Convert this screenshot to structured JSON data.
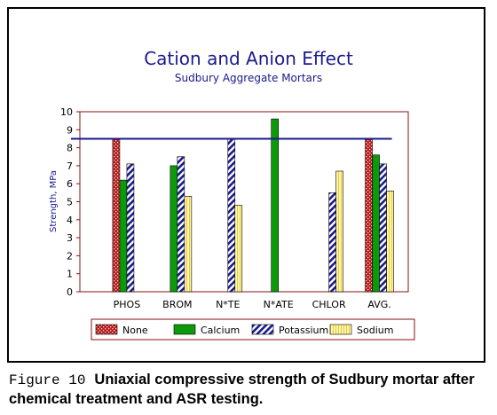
{
  "chart_data": {
    "type": "bar",
    "title": "Cation and Anion Effect",
    "subtitle": "Sudbury Aggregate Mortars",
    "xlabel": "",
    "ylabel": "Strength, MPa",
    "ylim": [
      0,
      10
    ],
    "yticks": [
      0,
      1,
      2,
      3,
      4,
      5,
      6,
      7,
      8,
      9,
      10
    ],
    "categories": [
      "PHOS",
      "BROM",
      "N*TE",
      "N*ATE",
      "CHLOR",
      "AVG."
    ],
    "series": [
      {
        "name": "None",
        "color": "#b51c1c",
        "pattern": "dots",
        "values": [
          8.5,
          null,
          null,
          null,
          null,
          8.5
        ]
      },
      {
        "name": "Calcium",
        "color": "#0a9a0a",
        "pattern": "solid",
        "values": [
          6.2,
          7.0,
          null,
          9.6,
          null,
          7.6
        ]
      },
      {
        "name": "Potassium",
        "color": "#1a1a8c",
        "pattern": "hatch",
        "values": [
          7.1,
          7.5,
          8.5,
          null,
          5.5,
          7.1
        ]
      },
      {
        "name": "Sodium",
        "color": "#fff8a8",
        "pattern": "lines",
        "values": [
          null,
          5.3,
          4.8,
          null,
          6.7,
          5.6
        ]
      }
    ],
    "reference_line": {
      "value": 8.5,
      "color": "#1a1a8c"
    },
    "grid": false,
    "legend_position": "bottom"
  },
  "caption": {
    "figure_label": "Figure 10",
    "text": "Uniaxial compressive strength of Sudbury mortar after chemical treatment and ASR testing."
  }
}
